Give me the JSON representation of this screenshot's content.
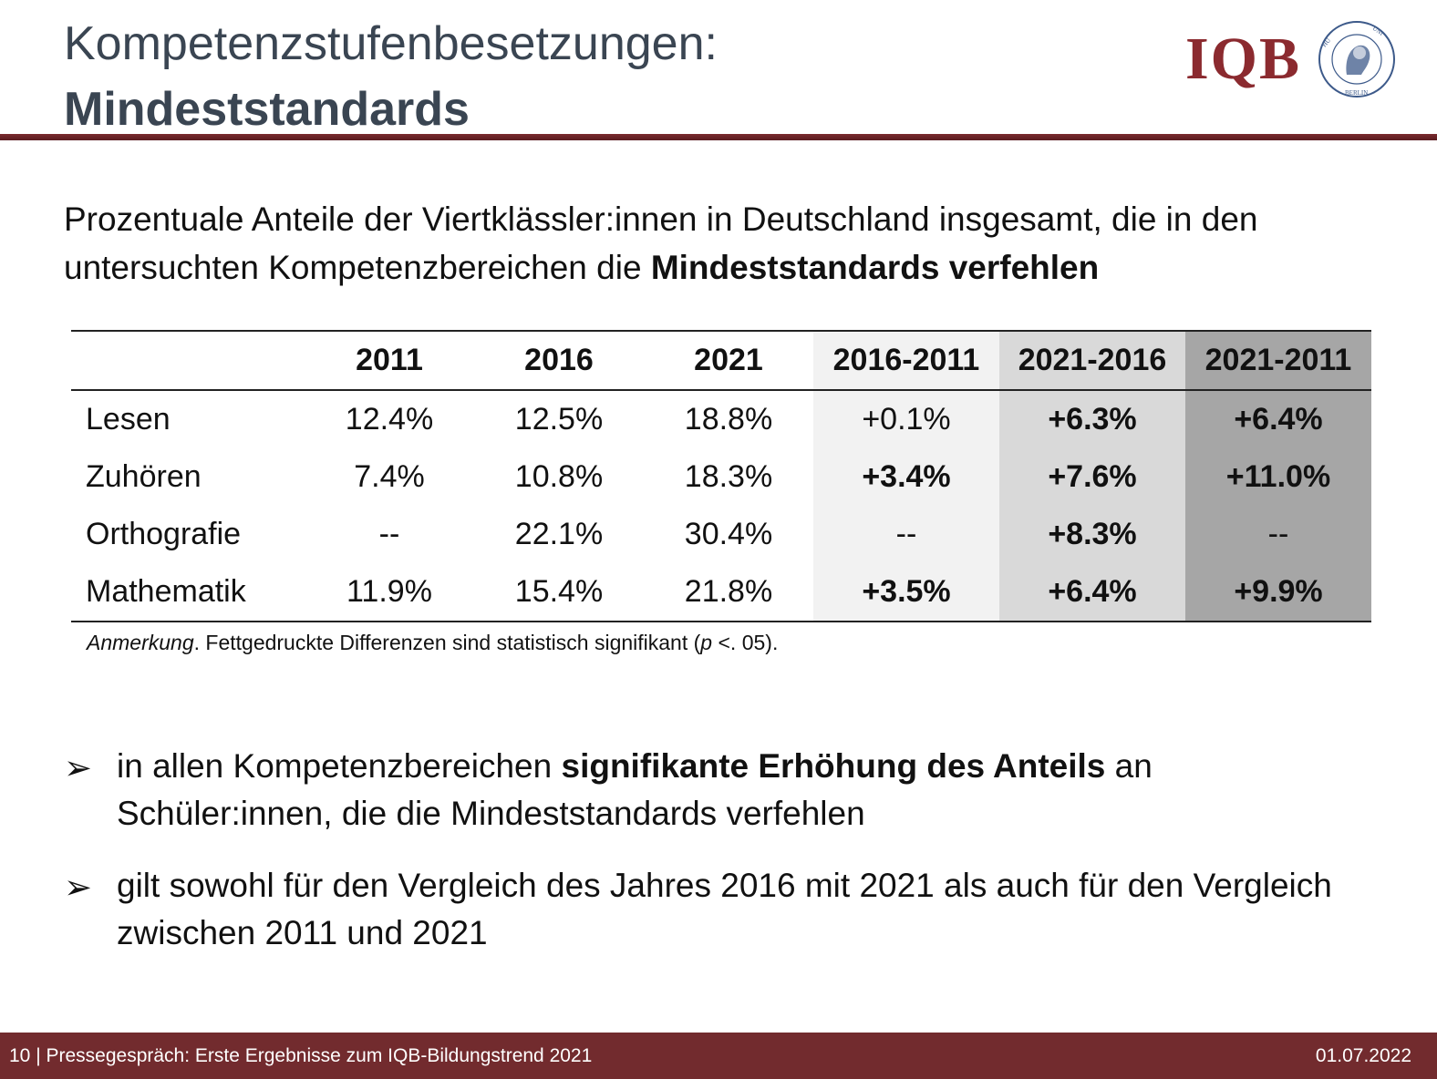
{
  "header": {
    "title_line1": "Kompetenzstufenbesetzungen:",
    "title_line2": "Mindeststandards",
    "logo_text": "IQB",
    "seal_text": "HUMBOLDT-UNIVERSITÄT ZU BERLIN"
  },
  "subtitle": {
    "part1": "Prozentuale Anteile der Viertklässler:innen in Deutschland insgesamt, die in den untersuchten Kompetenzbereichen die ",
    "bold": "Mindeststandards verfehlen"
  },
  "table": {
    "headers": [
      "",
      "2011",
      "2016",
      "2021",
      "2016-2011",
      "2021-2016",
      "2021-2011"
    ],
    "rows": [
      {
        "label": "Lesen",
        "v2011": "12.4%",
        "v2016": "12.5%",
        "v2021": "18.8%",
        "d1": "+0.1%",
        "d2": "+6.3%",
        "d3": "+6.4%"
      },
      {
        "label": "Zuhören",
        "v2011": "7.4%",
        "v2016": "10.8%",
        "v2021": "18.3%",
        "d1": "+3.4%",
        "d2": "+7.6%",
        "d3": "+11.0%"
      },
      {
        "label": "Orthografie",
        "v2011": "--",
        "v2016": "22.1%",
        "v2021": "30.4%",
        "d1": "--",
        "d2": "+8.3%",
        "d3": "--"
      },
      {
        "label": "Mathematik",
        "v2011": "11.9%",
        "v2016": "15.4%",
        "v2021": "21.8%",
        "d1": "+3.5%",
        "d2": "+6.4%",
        "d3": "+9.9%"
      }
    ],
    "note_italic": "Anmerkung",
    "note_a": ". Fettgedruckte Differenzen sind statistisch signifikant (",
    "note_p": "p",
    "note_b": " <. 05)."
  },
  "bullets": [
    {
      "pre": "in allen Kompetenzbereichen ",
      "bold": "signifikante Erhöhung des Anteils",
      "post": " an Schüler:innen, die die Mindeststandards verfehlen"
    },
    {
      "pre": "gilt sowohl für den Vergleich des Jahres 2016 mit 2021 als auch für den Vergleich zwischen 2011 und 2021",
      "bold": "",
      "post": ""
    }
  ],
  "bullet_glyph": "➢",
  "footer": {
    "left": "10 | Pressegespräch: Erste Ergebnisse zum IQB-Bildungstrend 2021",
    "right": "01.07.2022"
  },
  "colors": {
    "brand": "#722b2e",
    "title": "#3a4552",
    "diff1_bg": "#f2f2f2",
    "diff2_bg": "#d9d9d9",
    "diff3_bg": "#a6a6a6"
  }
}
